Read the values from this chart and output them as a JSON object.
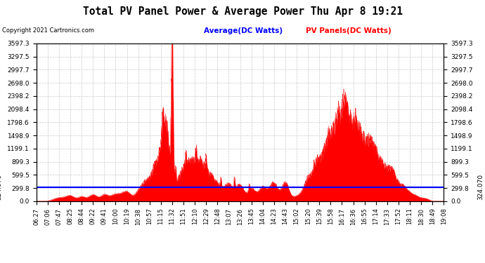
{
  "title": "Total PV Panel Power & Average Power Thu Apr 8 19:21",
  "copyright": "Copyright 2021 Cartronics.com",
  "legend_avg": "Average(DC Watts)",
  "legend_pv": "PV Panels(DC Watts)",
  "avg_value": 324.07,
  "ymax": 3597.3,
  "ymin": 0.0,
  "yticks": [
    0.0,
    299.8,
    599.5,
    899.3,
    1199.1,
    1498.9,
    1798.6,
    2098.4,
    2398.2,
    2698.0,
    2997.7,
    3297.5,
    3597.3
  ],
  "ytick_labels": [
    "0.0",
    "299.8",
    "599.5",
    "899.3",
    "1199.1",
    "1498.9",
    "1798.6",
    "2098.4",
    "2398.2",
    "2698.0",
    "2997.7",
    "3297.5",
    "3597.3"
  ],
  "xtick_labels": [
    "06:27",
    "07:06",
    "07:47",
    "08:25",
    "08:44",
    "09:22",
    "09:41",
    "10:00",
    "10:19",
    "10:38",
    "10:57",
    "11:15",
    "11:32",
    "11:51",
    "12:10",
    "12:29",
    "12:48",
    "13:07",
    "13:26",
    "13:45",
    "14:04",
    "14:23",
    "14:43",
    "15:02",
    "15:20",
    "15:39",
    "15:58",
    "16:17",
    "16:36",
    "16:55",
    "17:14",
    "17:33",
    "17:52",
    "18:11",
    "18:30",
    "18:49",
    "19:08"
  ],
  "bg_color": "#ffffff",
  "plot_bg_color": "#ffffff",
  "grid_color": "#bbbbbb",
  "red_color": "#ff0000",
  "blue_color": "#0000ff",
  "title_color": "#000000"
}
